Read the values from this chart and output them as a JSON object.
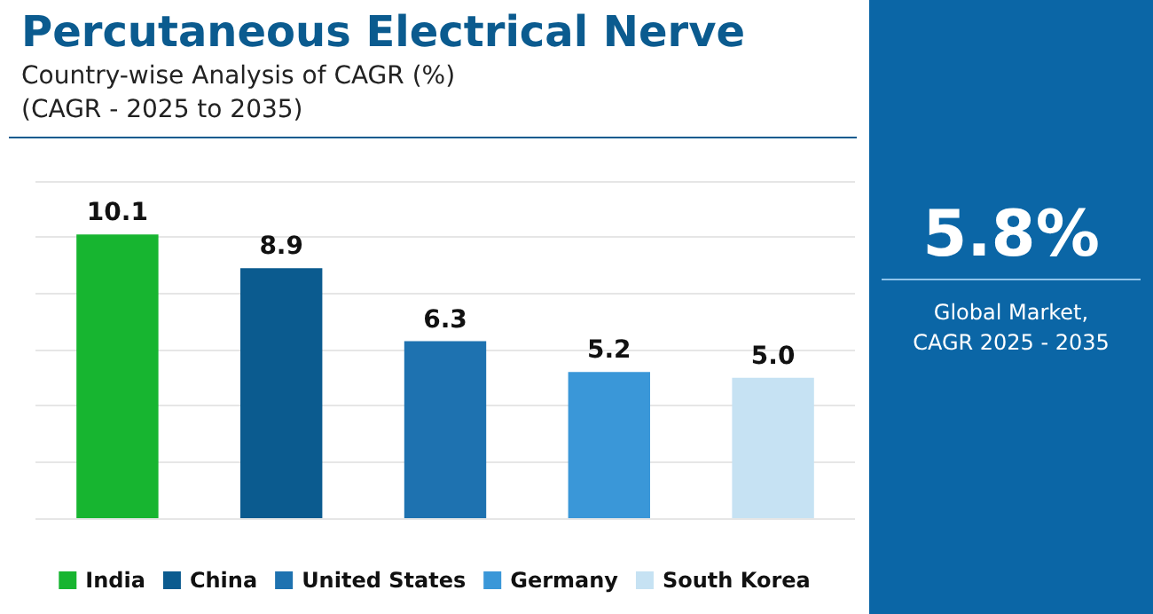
{
  "chart_data": {
    "type": "bar",
    "title": "Percutaneous Electrical Nerve",
    "subtitle": "Country-wise Analysis of CAGR (%)\n(CAGR - 2025 to 2035)",
    "categories": [
      null,
      null,
      null,
      null,
      null
    ],
    "series": [
      {
        "name": "India",
        "color": "#17b530",
        "values": [
          10.1,
          null,
          null,
          null,
          null
        ],
        "value_labels": [
          "10.1",
          null,
          null,
          null,
          null
        ]
      },
      {
        "name": "China",
        "color": "#0b5b8f",
        "values": [
          null,
          8.9,
          null,
          null,
          null
        ],
        "value_labels": [
          null,
          "8.9",
          null,
          null,
          null
        ]
      },
      {
        "name": "United States",
        "color": "#1e72b0",
        "values": [
          null,
          null,
          6.3,
          null,
          null
        ],
        "value_labels": [
          null,
          null,
          "6.3",
          null,
          null
        ]
      },
      {
        "name": "Germany",
        "color": "#3a97d8",
        "values": [
          null,
          null,
          null,
          5.2,
          null
        ],
        "value_labels": [
          null,
          null,
          null,
          "5.2",
          null
        ]
      },
      {
        "name": "South Korea",
        "color": "#c6e2f3",
        "values": [
          null,
          null,
          null,
          null,
          5.0
        ],
        "value_labels": [
          null,
          null,
          null,
          null,
          "5.0"
        ]
      }
    ],
    "stacked": true,
    "grid": "y",
    "tick_labels": false,
    "legend": "bottom",
    "annotations": [
      "5.8%",
      "Global Market,\nCAGR 2025 - 2035"
    ]
  }
}
